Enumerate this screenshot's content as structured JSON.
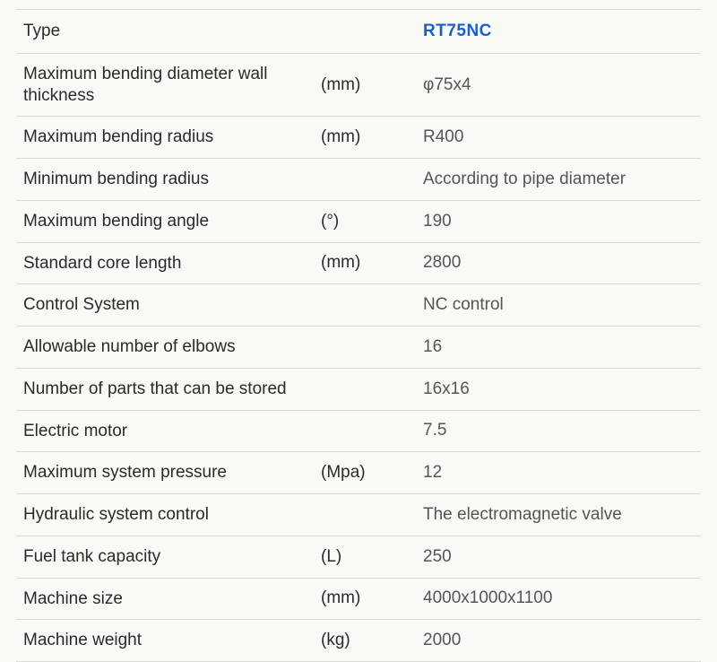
{
  "table": {
    "type": "table",
    "border_color": "#d8d9d4",
    "background_color": "#f9f9f6",
    "label_color": "#2a2a2a",
    "value_color": "#555555",
    "header_value_color": "#1a5fce",
    "font_size": 19,
    "header": {
      "label": "Type",
      "unit": "",
      "value": "RT75NC"
    },
    "rows": [
      {
        "label": "Maximum bending diameter wall thickness",
        "unit": "(mm)",
        "value": "φ75x4"
      },
      {
        "label": "Maximum bending radius",
        "unit": "(mm)",
        "value": "R400"
      },
      {
        "label": "Minimum bending radius",
        "unit": "",
        "value": "According to  pipe diameter"
      },
      {
        "label": "Maximum bending angle",
        "unit": "(°)",
        "value": "190"
      },
      {
        "label": "Standard core length",
        "unit": "(mm)",
        "value": "2800"
      },
      {
        "label": "Control System",
        "unit": "",
        "value": "NC control"
      },
      {
        "label": "Allowable number of elbows",
        "unit": "",
        "value": "16"
      },
      {
        "label": "Number of parts that can be stored",
        "unit": "",
        "value": "16x16"
      },
      {
        "label": "Electric motor",
        "unit": "",
        "value": "7.5"
      },
      {
        "label": "Maximum system pressure",
        "unit": "(Mpa)",
        "value": "12"
      },
      {
        "label": "Hydraulic system control",
        "unit": "",
        "value": "The electromagnetic valve"
      },
      {
        "label": "Fuel tank capacity",
        "unit": "(L)",
        "value": "250"
      },
      {
        "label": "Machine size",
        "unit": "(mm)",
        "value": "4000x1000x1100"
      },
      {
        "label": "Machine weight",
        "unit": "(kg)",
        "value": "2000"
      }
    ]
  }
}
